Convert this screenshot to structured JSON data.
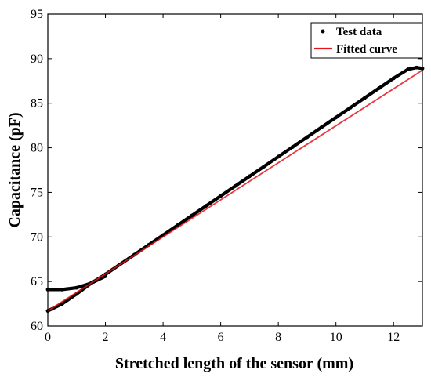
{
  "chart_data": {
    "type": "line",
    "title": "",
    "xlabel": "Stretched length of the sensor (mm)",
    "ylabel": "Capacitance (pF)",
    "xlim": [
      0,
      13
    ],
    "ylim": [
      60,
      95
    ],
    "xticks": [
      0,
      2,
      4,
      6,
      8,
      10,
      12
    ],
    "yticks": [
      60,
      65,
      70,
      75,
      80,
      85,
      90,
      95
    ],
    "grid": false,
    "legend": "top-right",
    "series": [
      {
        "name": "Test data",
        "style": "dots",
        "color": "#000000",
        "x": [
          0,
          0.5,
          1.0,
          1.5,
          2.0,
          2.5,
          3.0,
          3.5,
          4.0,
          4.5,
          5.0,
          5.5,
          6.0,
          6.5,
          7.0,
          7.5,
          8.0,
          8.5,
          9.0,
          9.5,
          10.0,
          10.5,
          11.0,
          11.5,
          12.0,
          12.5,
          12.8,
          13.0
        ],
        "y": [
          61.7,
          62.5,
          63.6,
          64.8,
          65.8,
          66.9,
          68.0,
          69.1,
          70.2,
          71.3,
          72.4,
          73.5,
          74.6,
          75.7,
          76.8,
          77.9,
          79.0,
          80.1,
          81.2,
          82.3,
          83.4,
          84.5,
          85.6,
          86.7,
          87.8,
          88.8,
          89.0,
          88.9
        ]
      },
      {
        "name": "Test data (return)",
        "style": "dots",
        "color": "#000000",
        "legend": false,
        "x": [
          0,
          0.5,
          1.0,
          1.5,
          2.0
        ],
        "y": [
          64.1,
          64.1,
          64.3,
          64.8,
          65.6
        ]
      },
      {
        "name": "Fitted curve",
        "style": "line",
        "color": "#e8141b",
        "x": [
          0,
          13
        ],
        "y": [
          61.7,
          88.7
        ]
      }
    ],
    "legend_entries": [
      "Test data",
      "Fitted curve"
    ]
  }
}
